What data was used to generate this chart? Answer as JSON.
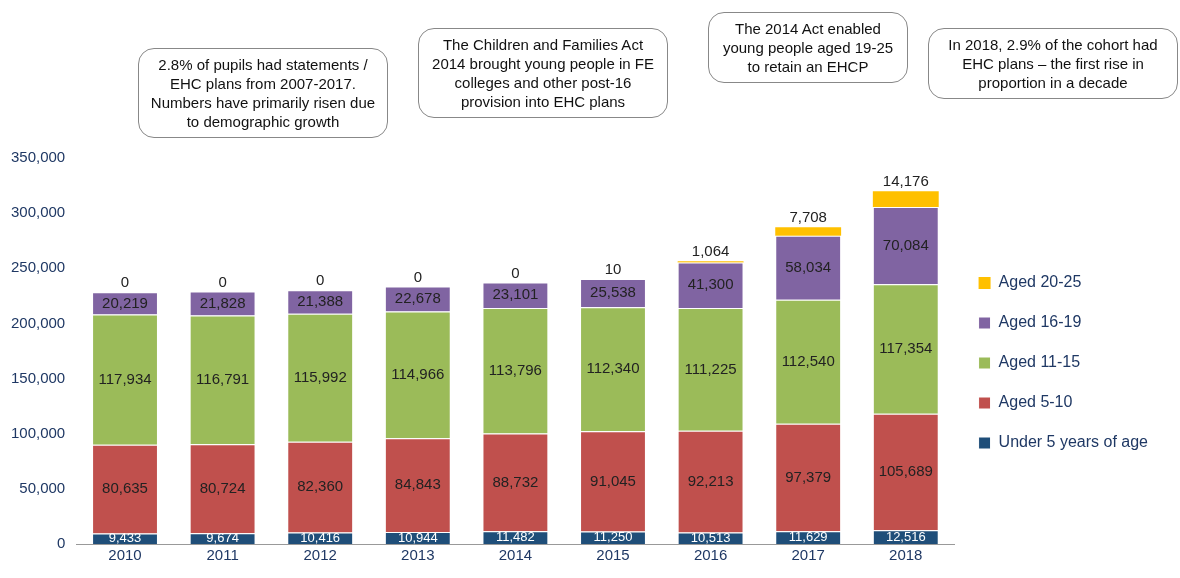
{
  "chart_data": {
    "type": "bar",
    "stacked": true,
    "categories": [
      "2010",
      "2011",
      "2012",
      "2013",
      "2014",
      "2015",
      "2016",
      "2017",
      "2018"
    ],
    "series": [
      {
        "name": "Under 5 years of age",
        "color": "#1f4e79",
        "values": [
          9433,
          9674,
          10416,
          10944,
          11482,
          11250,
          10513,
          11629,
          12516
        ],
        "value_labels": [
          "9,433",
          "9,674",
          "10,416",
          "10,944",
          "11,482",
          "11,250",
          "10,513",
          "11,629",
          "12,516"
        ]
      },
      {
        "name": "Aged 5-10",
        "color": "#c0504d",
        "values": [
          80635,
          80724,
          82360,
          84843,
          88732,
          91045,
          92213,
          97379,
          105689
        ],
        "value_labels": [
          "80,635",
          "80,724",
          "82,360",
          "84,843",
          "88,732",
          "91,045",
          "92,213",
          "97,379",
          "105,689"
        ]
      },
      {
        "name": "Aged 11-15",
        "color": "#9bbb59",
        "values": [
          117934,
          116791,
          115992,
          114966,
          113796,
          112340,
          111225,
          112540,
          117354
        ],
        "value_labels": [
          "117,934",
          "116,791",
          "115,992",
          "114,966",
          "113,796",
          "112,340",
          "111,225",
          "112,540",
          "117,354"
        ]
      },
      {
        "name": "Aged 16-19",
        "color": "#8064a2",
        "values": [
          20219,
          21828,
          21388,
          22678,
          23101,
          25538,
          41300,
          58034,
          70084
        ],
        "value_labels": [
          "20,219",
          "21,828",
          "21,388",
          "22,678",
          "23,101",
          "25,538",
          "41,300",
          "58,034",
          "70,084"
        ]
      },
      {
        "name": "Aged 20-25",
        "color": "#ffc000",
        "values": [
          0,
          0,
          0,
          0,
          0,
          10,
          1064,
          7708,
          14176
        ],
        "value_labels": [
          "0",
          "0",
          "0",
          "0",
          "0",
          "10",
          "1,064",
          "7,708",
          "14,176"
        ]
      }
    ],
    "ylim": [
      0,
      350000
    ],
    "yticks": [
      0,
      {
        "value": 50000,
        "label": "50,000"
      },
      {
        "value": 100000,
        "label": "100,000"
      },
      {
        "value": 150000,
        "label": "150,000"
      },
      {
        "value": 200000,
        "label": "200,000"
      },
      {
        "value": 250000,
        "label": "250,000"
      },
      {
        "value": 300000,
        "label": "300,000"
      },
      {
        "value": 350000,
        "label": "350,000"
      }
    ],
    "grid": false,
    "legend": "right",
    "annotations": [
      "2.8% of pupils had statements / EHC plans from 2007-2017. Numbers have primarily risen due to demographic growth",
      "The Children and Families Act 2014 brought young people in FE colleges and other post-16 provision into EHC plans",
      "The 2014 Act enabled young people aged 19-25 to retain an EHCP",
      "In 2018, 2.9% of the cohort had EHC plans – the first rise in proportion in a decade"
    ]
  }
}
